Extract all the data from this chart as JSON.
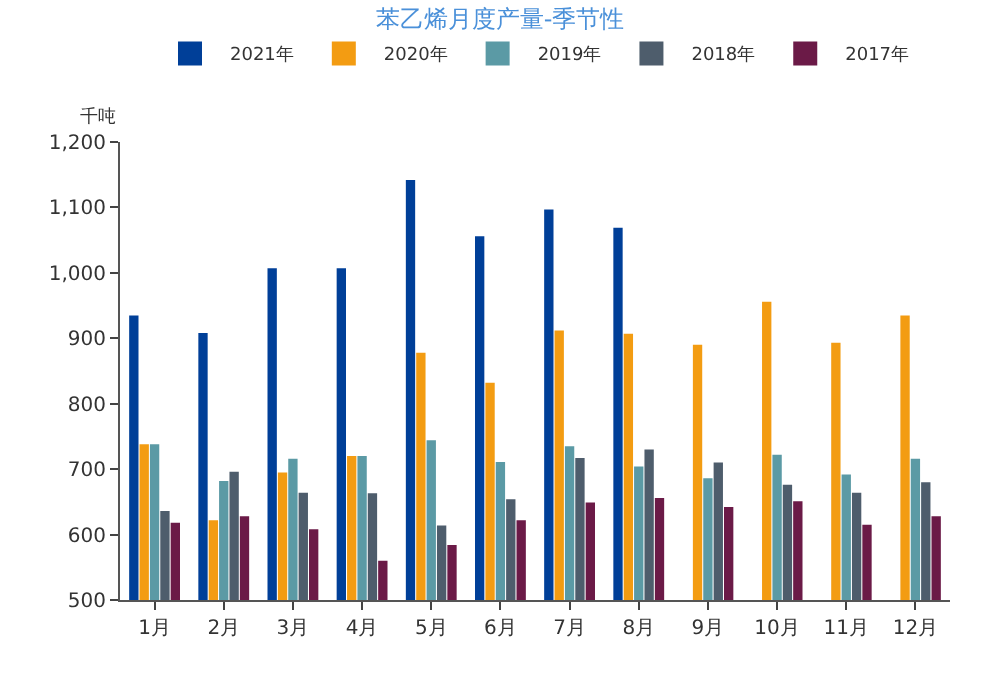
{
  "chart_data": {
    "type": "bar",
    "title": "苯乙烯月度产量-季节性",
    "ylabel": "千吨",
    "categories": [
      "1月",
      "2月",
      "3月",
      "4月",
      "5月",
      "6月",
      "7月",
      "8月",
      "9月",
      "10月",
      "11月",
      "12月"
    ],
    "series": [
      {
        "name": "2021年",
        "color": "#003f98",
        "values": [
          935,
          908,
          1007,
          1007,
          1142,
          1056,
          1097,
          1069,
          null,
          null,
          null,
          null
        ]
      },
      {
        "name": "2020年",
        "color": "#f39c12",
        "values": [
          738,
          622,
          695,
          720,
          878,
          832,
          912,
          907,
          890,
          956,
          893,
          935
        ]
      },
      {
        "name": "2019年",
        "color": "#5b9aa5",
        "values": [
          738,
          682,
          716,
          720,
          744,
          711,
          735,
          704,
          686,
          722,
          692,
          716
        ]
      },
      {
        "name": "2018年",
        "color": "#4e5d6c",
        "values": [
          636,
          696,
          664,
          663,
          614,
          654,
          717,
          730,
          710,
          676,
          664,
          680
        ]
      },
      {
        "name": "2017年",
        "color": "#6b1a47",
        "values": [
          618,
          628,
          608,
          560,
          584,
          622,
          649,
          656,
          642,
          651,
          615,
          628
        ]
      }
    ],
    "ylim": [
      500,
      1200
    ],
    "yticks": [
      {
        "value": 500,
        "label": "500"
      },
      {
        "value": 600,
        "label": "600"
      },
      {
        "value": 700,
        "label": "700"
      },
      {
        "value": 800,
        "label": "800"
      },
      {
        "value": 900,
        "label": "900"
      },
      {
        "value": 1000,
        "label": "1,000"
      },
      {
        "value": 1100,
        "label": "1,100"
      },
      {
        "value": 1200,
        "label": "1,200"
      }
    ],
    "grid": false,
    "legend": "top"
  }
}
